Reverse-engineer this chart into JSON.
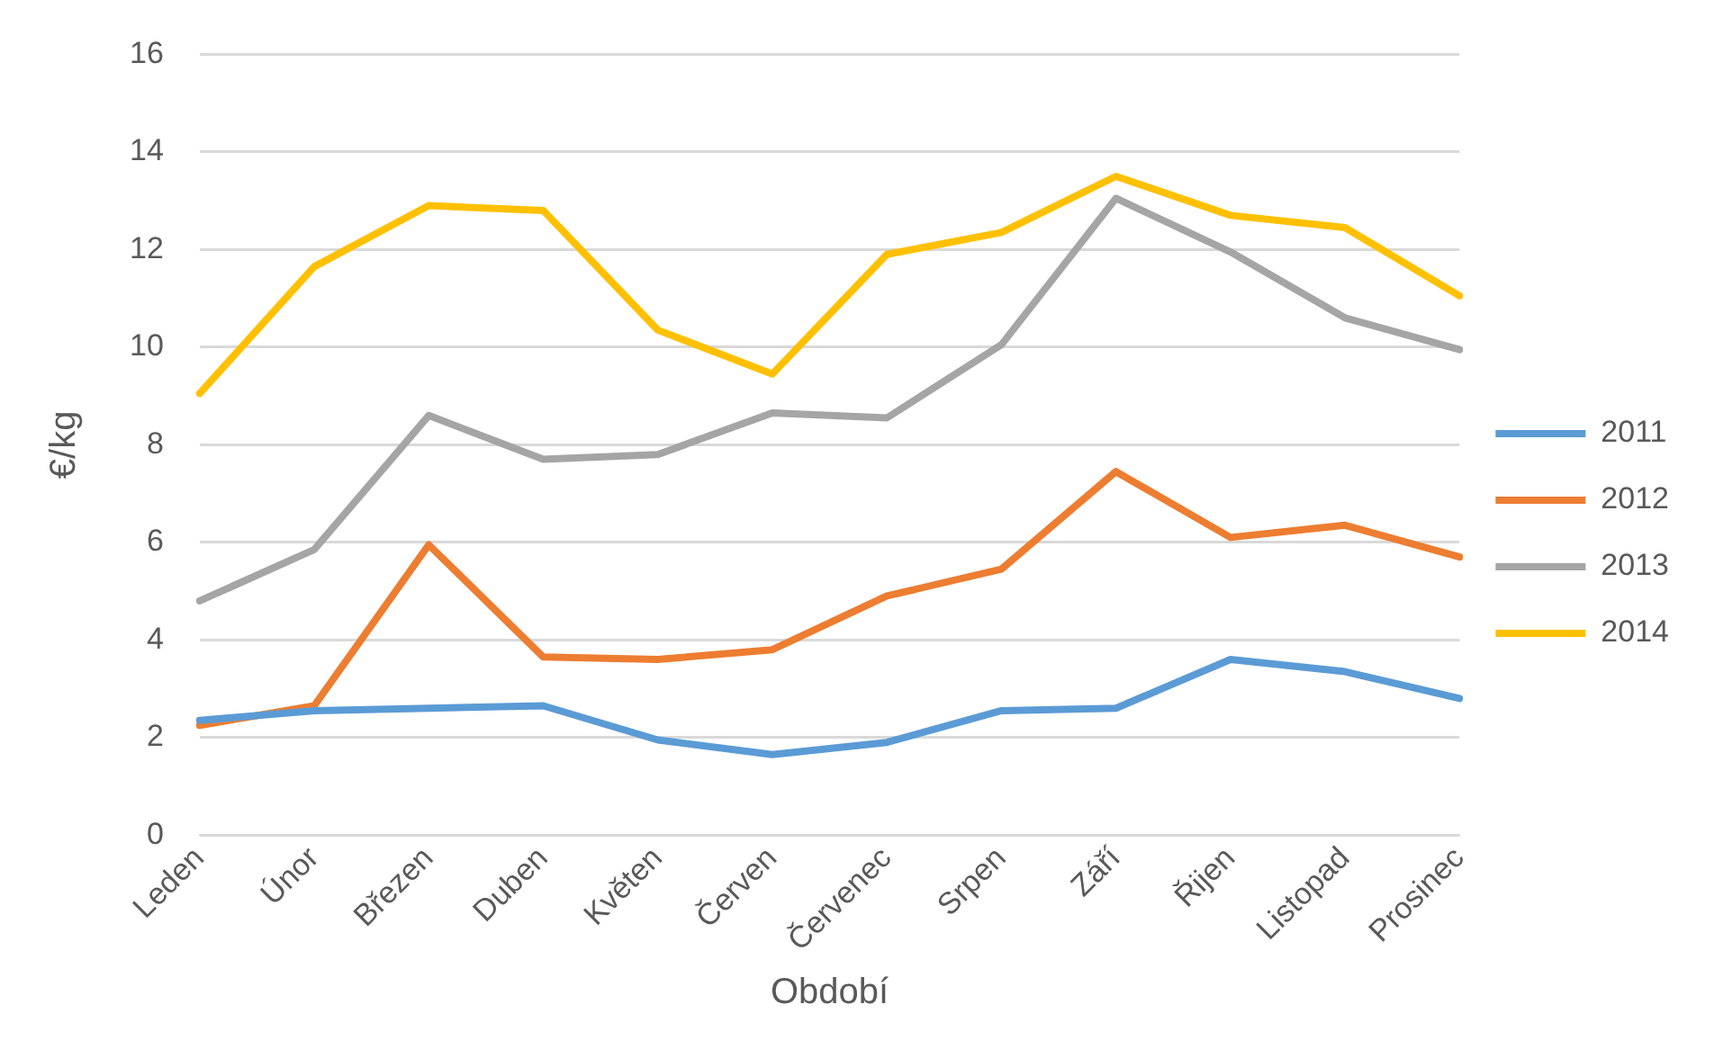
{
  "chart_data": {
    "type": "line",
    "xlabel": "Období",
    "ylabel": "€/kg",
    "categories": [
      "Leden",
      "Únor",
      "Březen",
      "Duben",
      "Květen",
      "Červen",
      "Červenec",
      "Srpen",
      "Září",
      "Řijen",
      "Listopad",
      "Prosinec"
    ],
    "series": [
      {
        "name": "2011",
        "color": "#5b9bd5",
        "values": [
          2.35,
          2.55,
          2.6,
          2.65,
          1.95,
          1.65,
          1.9,
          2.55,
          2.6,
          3.6,
          3.35,
          2.8
        ]
      },
      {
        "name": "2012",
        "color": "#ed7d31",
        "values": [
          2.25,
          2.65,
          5.95,
          3.65,
          3.6,
          3.8,
          4.9,
          5.45,
          7.45,
          6.1,
          6.35,
          5.7
        ]
      },
      {
        "name": "2013",
        "color": "#a5a5a5",
        "values": [
          4.8,
          5.85,
          8.6,
          7.7,
          7.8,
          8.65,
          8.55,
          10.05,
          13.05,
          11.95,
          10.6,
          9.95
        ]
      },
      {
        "name": "2014",
        "color": "#ffc000",
        "values": [
          9.05,
          11.65,
          12.9,
          12.8,
          10.35,
          9.45,
          11.9,
          12.35,
          13.5,
          12.7,
          12.45,
          11.05
        ]
      }
    ],
    "ylim": [
      0,
      16
    ],
    "yticks": [
      0,
      2,
      4,
      6,
      8,
      10,
      12,
      14,
      16
    ],
    "grid": "y",
    "legend": "right",
    "marker": "none",
    "line_style": "solid"
  }
}
